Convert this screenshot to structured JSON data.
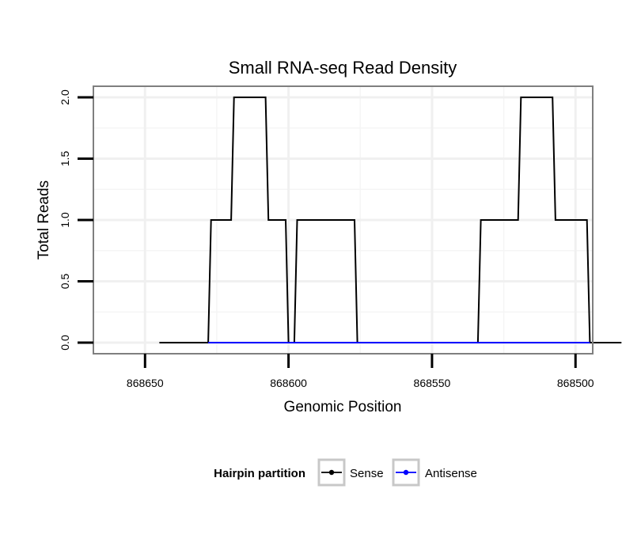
{
  "chart_data": {
    "type": "line",
    "title": "Small RNA-seq Read Density",
    "xlabel": "Genomic Position",
    "ylabel": "Total Reads",
    "x_reversed": true,
    "xlim": [
      868668,
      868494
    ],
    "ylim": [
      -0.09,
      2.09
    ],
    "xticks": [
      868650,
      868600,
      868550,
      868500
    ],
    "xtick_labels": [
      "868650",
      "868600",
      "868550",
      "868500"
    ],
    "yticks": [
      0.0,
      0.5,
      1.0,
      1.5,
      2.0
    ],
    "ytick_labels": [
      "0.0",
      "0.5",
      "1.0",
      "1.5",
      "2.0"
    ],
    "grid": true,
    "legend": {
      "title": "Hairpin partition",
      "position": "bottom",
      "entries": [
        {
          "label": "Sense",
          "color": "#000000"
        },
        {
          "label": "Antisense",
          "color": "#0000ff"
        }
      ]
    },
    "series": [
      {
        "name": "Sense",
        "color": "#000000",
        "x": [
          868645,
          868628,
          868627,
          868620,
          868619,
          868608,
          868607,
          868601,
          868600,
          868598,
          868597,
          868577,
          868576,
          868534,
          868533,
          868520,
          868519,
          868508,
          868507,
          868496,
          868495,
          868484
        ],
        "y": [
          0,
          0,
          1,
          1,
          2,
          2,
          1,
          1,
          0,
          0,
          1,
          1,
          0,
          0,
          1,
          1,
          2,
          2,
          1,
          1,
          0,
          0
        ]
      },
      {
        "name": "Antisense",
        "color": "#0000ff",
        "x": [
          868628,
          868598,
          868598,
          868577,
          868534,
          868495
        ],
        "y": [
          0,
          0,
          0,
          0,
          0,
          0
        ]
      }
    ]
  }
}
